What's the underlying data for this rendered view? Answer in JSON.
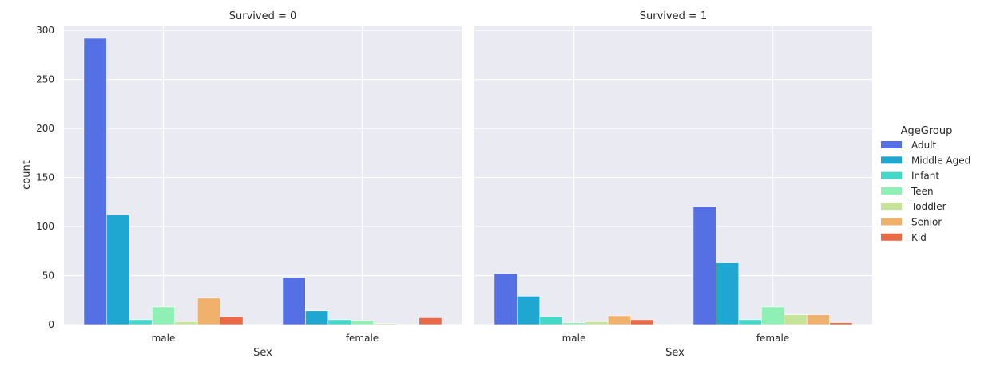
{
  "chart_data": {
    "type": "bar",
    "ylabel": "count",
    "xlabel": "Sex",
    "ylim": [
      0,
      305
    ],
    "yticks": [
      0,
      50,
      100,
      150,
      200,
      250,
      300
    ],
    "categories": [
      "male",
      "female"
    ],
    "legend": {
      "title": "AgeGroup",
      "position": "right",
      "entries": [
        "Adult",
        "Middle Aged",
        "Infant",
        "Teen",
        "Toddler",
        "Senior",
        "Kid"
      ]
    },
    "colors": [
      "#5470e4",
      "#1fa7d2",
      "#43d8c8",
      "#8ff0b5",
      "#c6e497",
      "#f0b16c",
      "#ea6a48"
    ],
    "grid": true,
    "panels": [
      {
        "title": "Survived = 0",
        "series": [
          {
            "name": "Adult",
            "values": [
              292,
              48
            ]
          },
          {
            "name": "Middle Aged",
            "values": [
              112,
              14
            ]
          },
          {
            "name": "Infant",
            "values": [
              5,
              5
            ]
          },
          {
            "name": "Teen",
            "values": [
              18,
              4
            ]
          },
          {
            "name": "Toddler",
            "values": [
              3,
              1
            ]
          },
          {
            "name": "Senior",
            "values": [
              27,
              0
            ]
          },
          {
            "name": "Kid",
            "values": [
              8,
              7
            ]
          }
        ]
      },
      {
        "title": "Survived = 1",
        "series": [
          {
            "name": "Adult",
            "values": [
              52,
              120
            ]
          },
          {
            "name": "Middle Aged",
            "values": [
              29,
              63
            ]
          },
          {
            "name": "Infant",
            "values": [
              8,
              5
            ]
          },
          {
            "name": "Teen",
            "values": [
              2,
              18
            ]
          },
          {
            "name": "Toddler",
            "values": [
              3,
              10
            ]
          },
          {
            "name": "Senior",
            "values": [
              9,
              10
            ]
          },
          {
            "name": "Kid",
            "values": [
              5,
              2
            ]
          }
        ]
      }
    ]
  }
}
